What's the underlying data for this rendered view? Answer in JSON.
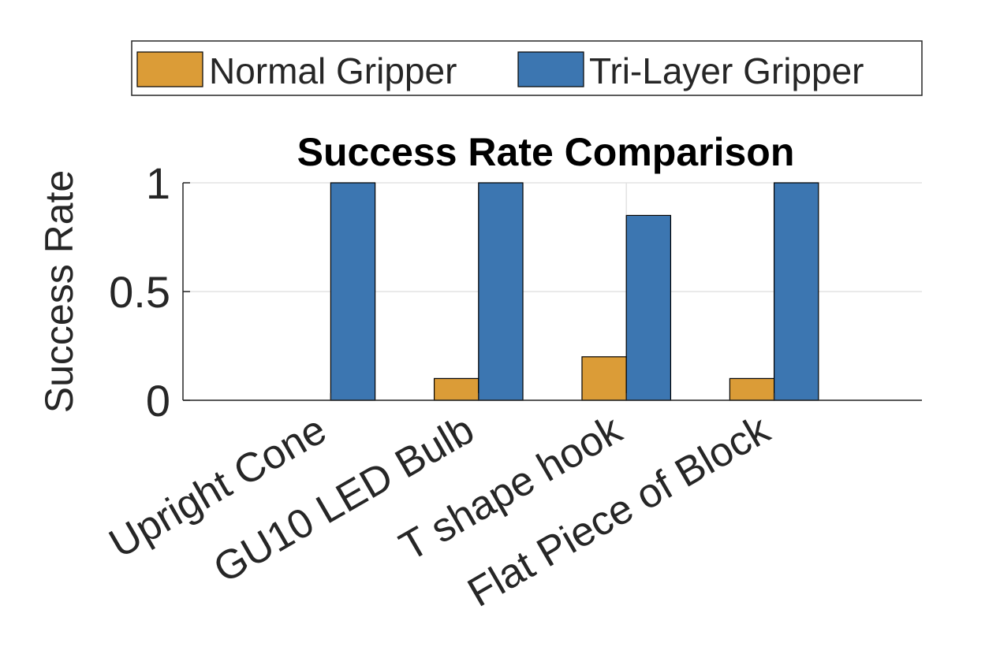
{
  "chart_data": {
    "type": "bar",
    "title": "Success Rate Comparison",
    "xlabel": "",
    "ylabel": "Success Rate",
    "categories": [
      "Upright Cone",
      "GU10 LED Bulb",
      "T shape hook",
      "Flat Piece of Block"
    ],
    "series": [
      {
        "name": "Normal Gripper",
        "color": "#DB9C37",
        "values": [
          0,
          0.1,
          0.2,
          0.1
        ]
      },
      {
        "name": "Tri-Layer Gripper",
        "color": "#3C76B1",
        "values": [
          1,
          1,
          0.85,
          1
        ]
      }
    ],
    "ylim": [
      0,
      1
    ],
    "yticks": [
      0,
      0.5,
      1
    ],
    "ytick_labels": [
      "0",
      "0.5",
      "1"
    ],
    "grid": true,
    "legend_position": "top, outside plot, horizontal"
  }
}
